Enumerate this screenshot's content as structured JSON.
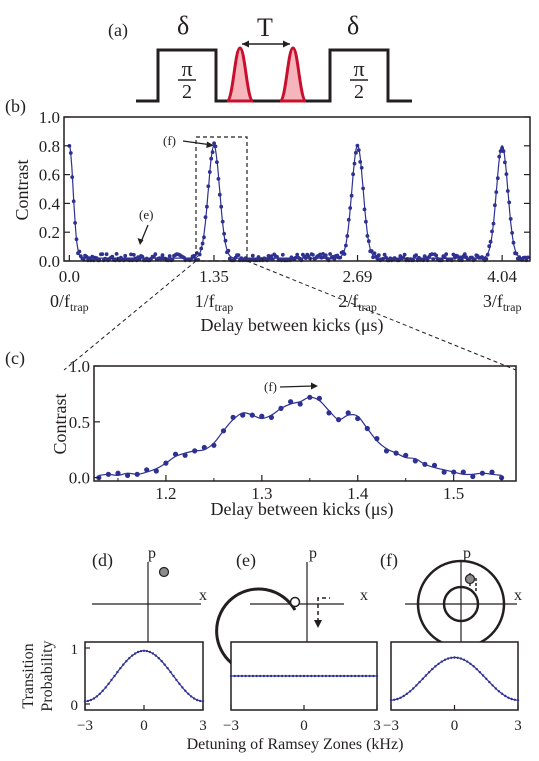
{
  "panels": {
    "a": "(a)",
    "b": "(b)",
    "c": "(c)",
    "d": "(d)",
    "e": "(e)",
    "f": "(f)"
  },
  "pulse": {
    "delta_left": "δ",
    "delta_right": "δ",
    "T": "T",
    "pi_left": "π",
    "two_left": "2",
    "pi_right": "π",
    "two_right": "2"
  },
  "phase": {
    "p_label": "p",
    "x_label": "x"
  },
  "colors": {
    "data": "#2e3192",
    "accent": "#c8102e",
    "ink": "#231f20"
  },
  "chart_data": [
    {
      "type": "scatter",
      "xlabel": "Delay between kicks (μs)",
      "ylabel": "Contrast",
      "xlim": [
        -0.05,
        4.3
      ],
      "ylim": [
        0,
        1.0
      ],
      "yticks": [
        "0.0",
        "0.2",
        "0.4",
        "0.6",
        "0.8",
        "1.0"
      ],
      "xticks": [
        {
          "value": 0.0,
          "label": "0.0"
        },
        {
          "value": 1.35,
          "label": "1.35"
        },
        {
          "value": 2.69,
          "label": "2.69"
        },
        {
          "value": 4.04,
          "label": "4.04"
        }
      ],
      "trap_labels": [
        {
          "value": 0.0,
          "num": "0/f",
          "sub": "trap"
        },
        {
          "value": 1.35,
          "num": "1/f",
          "sub": "trap"
        },
        {
          "value": 2.69,
          "num": "2/f",
          "sub": "trap"
        },
        {
          "value": 4.04,
          "num": "3/f",
          "sub": "trap"
        }
      ],
      "peak_centers": [
        0.0,
        1.35,
        2.69,
        4.04
      ],
      "peak_height": 0.78,
      "annotations": [
        "(f)",
        "(e)"
      ]
    },
    {
      "type": "scatter",
      "xlabel": "Delay between kicks (μs)",
      "ylabel": "Contrast",
      "xlim": [
        1.125,
        1.565
      ],
      "ylim": [
        -0.03,
        1.0
      ],
      "yticks": [
        "0.0",
        "0.5",
        "1.0"
      ],
      "xticks": [
        "1.2",
        "1.3",
        "1.4",
        "1.5"
      ],
      "x": [
        1.13,
        1.14,
        1.15,
        1.16,
        1.17,
        1.18,
        1.19,
        1.2,
        1.21,
        1.22,
        1.23,
        1.24,
        1.25,
        1.26,
        1.27,
        1.28,
        1.29,
        1.3,
        1.31,
        1.32,
        1.33,
        1.34,
        1.35,
        1.36,
        1.37,
        1.38,
        1.39,
        1.4,
        1.41,
        1.42,
        1.43,
        1.44,
        1.45,
        1.46,
        1.47,
        1.48,
        1.49,
        1.5,
        1.51,
        1.52,
        1.53,
        1.54,
        1.55
      ],
      "y": [
        0.02,
        0.03,
        0.02,
        0.04,
        0.03,
        0.05,
        0.08,
        0.13,
        0.19,
        0.22,
        0.24,
        0.25,
        0.31,
        0.42,
        0.52,
        0.58,
        0.56,
        0.53,
        0.56,
        0.62,
        0.66,
        0.68,
        0.72,
        0.69,
        0.6,
        0.52,
        0.56,
        0.55,
        0.44,
        0.33,
        0.26,
        0.22,
        0.18,
        0.17,
        0.12,
        0.09,
        0.07,
        0.05,
        0.03,
        0.03,
        0.04,
        0.03,
        0.02
      ],
      "annotations": [
        "(f)"
      ]
    },
    {
      "type": "line",
      "xlabel": "Detuning of Ramsey Zones (kHz)",
      "ylabel_line1": "Transition",
      "ylabel_line2": "Probability",
      "xlim": [
        -3,
        3
      ],
      "ylim": [
        0,
        1
      ],
      "xticks": [
        "−3",
        "0",
        "3"
      ],
      "yticks": [
        "0",
        "1"
      ],
      "series": [
        {
          "panel": "d",
          "type": "cosine",
          "center": 0,
          "period": 6,
          "mean": 0.5,
          "amplitude": 0.45
        },
        {
          "panel": "e",
          "type": "flat",
          "value": 0.5
        },
        {
          "panel": "f",
          "type": "cosine",
          "center": 0,
          "period": 6,
          "mean": 0.45,
          "amplitude": 0.38
        }
      ]
    }
  ]
}
